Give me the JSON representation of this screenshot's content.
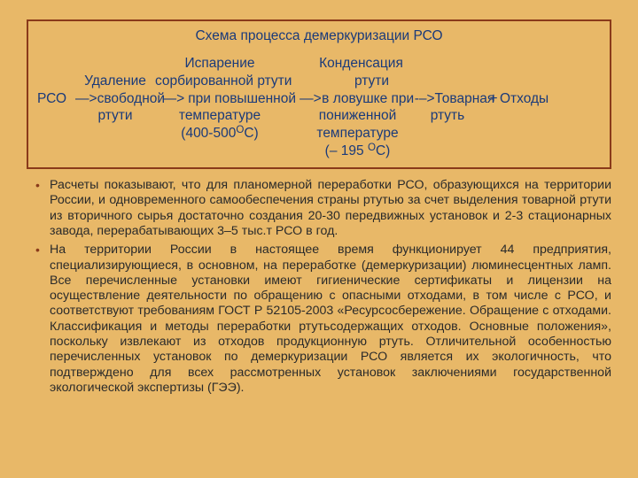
{
  "colors": {
    "slide_bg": "#e8b868",
    "box_border": "#8a3a1a",
    "text_main": "#1a3a7a",
    "bullet": "#8a3a1a",
    "body_text": "#2a2a2a"
  },
  "scheme": {
    "title": "Схема процесса демеркуризации РСО",
    "flow": {
      "start": "РСО",
      "arrow1": "—>",
      "stage1_l1": "Удаление",
      "stage1_l2": "свободной",
      "stage1_l3": "ртути",
      "arrow2": "—>",
      "stage2_l1": "Испарение",
      "stage2_l2": "сорбированной ртути",
      "stage2_l3": "при повышенной",
      "stage2_l4": "температуре",
      "stage2_l5_a": "(400-500",
      "stage2_l5_b": "О",
      "stage2_l5_c": "С)",
      "arrow3": "—>",
      "stage3_l1": "Конденсация",
      "stage3_l2": "ртути",
      "stage3_l3": "в ловушке при",
      "stage3_l4": "пониженной",
      "stage3_l5": "температуре",
      "stage3_l6_a": "(– 195 ",
      "stage3_l6_b": "О",
      "stage3_l6_c": "С)",
      "arrow4": "-–>",
      "stage4_l1": "Товарная",
      "stage4_l2": "ртуть",
      "plus": "+",
      "stage5": "Отходы"
    }
  },
  "bullets": [
    "Расчеты показывают, что для планомерной переработки РСО, образующихся на территории России, и одновременного самообеспечения страны ртутью за счет выделения товарной ртути из вторичного сырья достаточно создания 20-30 передвижных  установок и 2-3 стационарных завода, перерабатывающих  3–5 тыс.т РСО в год.",
    "На территории России в настоящее время функционирует 44 предприятия, специализирующиеся, в основном, на переработке (демеркуризации) люминесцентных ламп. Все перечисленные установки имеют гигиенические сертификаты и лицензии на осуществление деятельности по обращению с опасными отходами, в том числе с РСО, и соответствуют требованиям ГОСТ Р 52105-2003 «Ресурсосбережение. Обращение с отходами. Классификация и методы переработки ртутьсодержащих отходов. Основные положения», поскольку извлекают из отходов продукционную ртуть. Отличительной особенностью перечисленных установок по демеркуризации РСО является их экологичность, что подтверждено для всех рассмотренных установок заключениями государственной экологической экспертизы (ГЭЭ)."
  ]
}
